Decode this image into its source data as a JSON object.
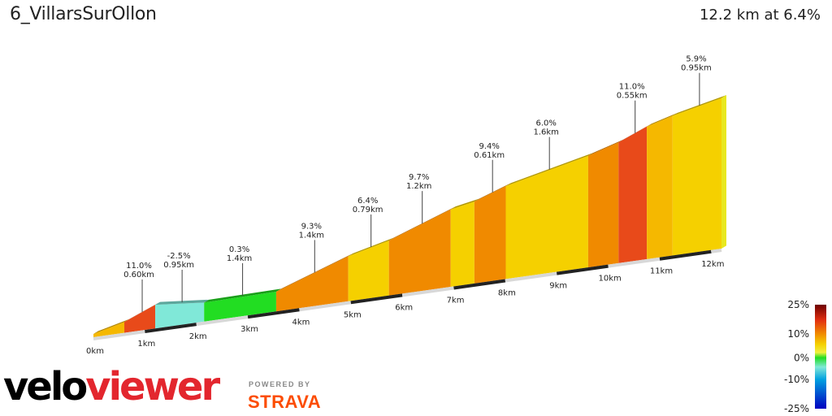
{
  "header": {
    "title": "6_VillarsSurOllon",
    "summary": "12.2 km at 6.4%"
  },
  "branding": {
    "logo_part1": "velo",
    "logo_part2": "viewer",
    "powered_by": "POWERED BY",
    "strava": "STRAVA"
  },
  "chart_data": {
    "type": "area",
    "title": "6_VillarsSurOllon",
    "subtitle": "12.2 km at 6.4%",
    "x_unit": "km",
    "xlim": [
      0,
      12.2
    ],
    "km_ticks": [
      "0km",
      "1km",
      "2km",
      "3km",
      "4km",
      "5km",
      "6km",
      "7km",
      "8km",
      "9km",
      "10km",
      "11km",
      "12km"
    ],
    "segments": [
      {
        "label_grade": "",
        "label_length": "",
        "grade": 6.5,
        "start_km": 0.0,
        "end_km": 0.6,
        "elev_end_m": 39
      },
      {
        "label_grade": "11.0%",
        "label_length": "0.60km",
        "grade": 11.0,
        "start_km": 0.6,
        "end_km": 1.2,
        "elev_end_m": 105
      },
      {
        "label_grade": "-2.5%",
        "label_length": "0.95km",
        "grade": -2.5,
        "start_km": 1.2,
        "end_km": 2.15,
        "elev_end_m": 81
      },
      {
        "label_grade": "0.3%",
        "label_length": "1.4km",
        "grade": 0.3,
        "start_km": 2.15,
        "end_km": 3.55,
        "elev_end_m": 85
      },
      {
        "label_grade": "9.3%",
        "label_length": "1.4km",
        "grade": 9.3,
        "start_km": 3.55,
        "end_km": 4.95,
        "elev_end_m": 215
      },
      {
        "label_grade": "6.4%",
        "label_length": "0.79km",
        "grade": 6.4,
        "start_km": 4.95,
        "end_km": 5.74,
        "elev_end_m": 266
      },
      {
        "label_grade": "9.7%",
        "label_length": "1.2km",
        "grade": 9.7,
        "start_km": 5.74,
        "end_km": 6.94,
        "elev_end_m": 382
      },
      {
        "label_grade": "",
        "label_length": "",
        "grade": 5.0,
        "start_km": 6.94,
        "end_km": 7.4,
        "elev_end_m": 405
      },
      {
        "label_grade": "9.4%",
        "label_length": "0.61km",
        "grade": 9.4,
        "start_km": 7.4,
        "end_km": 8.01,
        "elev_end_m": 462
      },
      {
        "label_grade": "6.0%",
        "label_length": "1.6km",
        "grade": 6.0,
        "start_km": 8.01,
        "end_km": 9.61,
        "elev_end_m": 558
      },
      {
        "label_grade": "",
        "label_length": "",
        "grade": 8.0,
        "start_km": 9.61,
        "end_km": 10.2,
        "elev_end_m": 605
      },
      {
        "label_grade": "11.0%",
        "label_length": "0.55km",
        "grade": 11.0,
        "start_km": 10.2,
        "end_km": 10.75,
        "elev_end_m": 666
      },
      {
        "label_grade": "",
        "label_length": "",
        "grade": 7.5,
        "start_km": 10.75,
        "end_km": 11.25,
        "elev_end_m": 703
      },
      {
        "label_grade": "5.9%",
        "label_length": "0.95km",
        "grade": 5.9,
        "start_km": 11.25,
        "end_km": 12.2,
        "elev_end_m": 759
      }
    ],
    "legend": {
      "title": "",
      "ticks": [
        "25%",
        "10%",
        "0%",
        "-10%",
        "-25%"
      ],
      "tick_values": [
        25,
        10,
        0,
        -10,
        -25
      ],
      "colors": {
        "p25": "#6e0000",
        "p15": "#e84a1a",
        "p10": "#f08a00",
        "p5": "#f5d000",
        "p2": "#f0f040",
        "p0": "#22dd22",
        "m2": "#80e8d8",
        "m10": "#00a0e0",
        "m25": "#0000c0"
      }
    }
  }
}
